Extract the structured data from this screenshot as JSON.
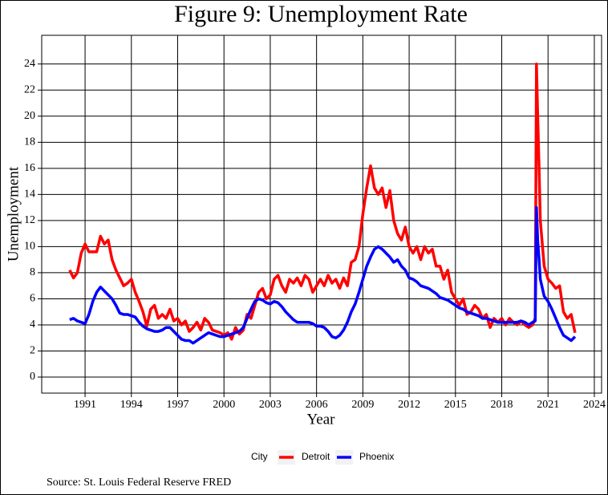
{
  "chart_data": {
    "type": "line",
    "title": "Figure 9: Unemployment Rate",
    "x_label": "Year",
    "y_label": "Unemployment",
    "legend_title": "City",
    "legend_position": "bottom",
    "source": "Source: St. Louis Federal Reserve FRED",
    "grid": true,
    "xlim": [
      1988.19,
      2024.47
    ],
    "ylim": [
      -1.23,
      26.2
    ],
    "xticks": [
      1991,
      1994,
      1997,
      2000,
      2003,
      2006,
      2009,
      2012,
      2015,
      2018,
      2021,
      2024
    ],
    "yticks": [
      0,
      2,
      4,
      6,
      8,
      10,
      12,
      14,
      16,
      18,
      20,
      22,
      24
    ],
    "x": [
      1990,
      1990.25,
      1990.5,
      1990.75,
      1991,
      1991.25,
      1991.5,
      1991.75,
      1992,
      1992.25,
      1992.5,
      1992.75,
      1993,
      1993.25,
      1993.5,
      1993.75,
      1994,
      1994.25,
      1994.5,
      1994.75,
      1995,
      1995.25,
      1995.5,
      1995.75,
      1996,
      1996.25,
      1996.5,
      1996.75,
      1997,
      1997.25,
      1997.5,
      1997.75,
      1998,
      1998.25,
      1998.5,
      1998.75,
      1999,
      1999.25,
      1999.5,
      1999.75,
      2000,
      2000.25,
      2000.5,
      2000.75,
      2001,
      2001.25,
      2001.5,
      2001.75,
      2002,
      2002.25,
      2002.5,
      2002.75,
      2003,
      2003.25,
      2003.5,
      2003.75,
      2004,
      2004.25,
      2004.5,
      2004.75,
      2005,
      2005.25,
      2005.5,
      2005.75,
      2006,
      2006.25,
      2006.5,
      2006.75,
      2007,
      2007.25,
      2007.5,
      2007.75,
      2008,
      2008.25,
      2008.5,
      2008.75,
      2009,
      2009.25,
      2009.5,
      2009.75,
      2010,
      2010.25,
      2010.5,
      2010.75,
      2011,
      2011.25,
      2011.5,
      2011.75,
      2012,
      2012.25,
      2012.5,
      2012.75,
      2013,
      2013.25,
      2013.5,
      2013.75,
      2014,
      2014.25,
      2014.5,
      2014.75,
      2015,
      2015.25,
      2015.5,
      2015.75,
      2016,
      2016.25,
      2016.5,
      2016.75,
      2017,
      2017.25,
      2017.5,
      2017.75,
      2018,
      2018.25,
      2018.5,
      2018.75,
      2019,
      2019.25,
      2019.5,
      2019.75,
      2020,
      2020.17,
      2020.25,
      2020.33,
      2020.42,
      2020.5,
      2020.75,
      2021,
      2021.25,
      2021.5,
      2021.75,
      2022,
      2022.25,
      2022.5,
      2022.75
    ],
    "series": [
      {
        "name": "Detroit",
        "color": "#ff0000",
        "values": [
          8.2,
          7.6,
          8.0,
          9.5,
          10.2,
          9.6,
          9.6,
          9.6,
          10.8,
          10.2,
          10.5,
          9.0,
          8.2,
          7.6,
          7.0,
          7.2,
          7.5,
          6.5,
          5.8,
          5.0,
          3.9,
          5.2,
          5.5,
          4.5,
          4.8,
          4.5,
          5.2,
          4.3,
          4.5,
          4.0,
          4.3,
          3.5,
          3.8,
          4.2,
          3.6,
          4.5,
          4.2,
          3.6,
          3.5,
          3.4,
          3.2,
          3.4,
          2.9,
          3.8,
          3.3,
          3.6,
          4.8,
          4.5,
          5.5,
          6.5,
          6.8,
          6.0,
          6.3,
          7.5,
          7.8,
          7.0,
          6.5,
          7.5,
          7.2,
          7.6,
          7.0,
          7.8,
          7.5,
          6.5,
          7.0,
          7.5,
          7.0,
          7.8,
          7.2,
          7.5,
          6.8,
          7.6,
          7.0,
          8.8,
          9.0,
          10.0,
          12.5,
          14.5,
          16.2,
          14.5,
          14.0,
          14.5,
          13.0,
          14.3,
          12.0,
          11.0,
          10.5,
          11.5,
          10.0,
          9.5,
          10.0,
          9.0,
          10.0,
          9.5,
          9.8,
          8.5,
          8.5,
          7.5,
          8.2,
          6.5,
          6.0,
          5.5,
          6.0,
          4.8,
          5.0,
          5.5,
          5.2,
          4.5,
          4.8,
          3.8,
          4.5,
          4.2,
          4.5,
          4.0,
          4.5,
          4.2,
          4.0,
          4.3,
          4.0,
          3.8,
          4.0,
          4.5,
          24.0,
          20.0,
          16.0,
          12.0,
          8.5,
          7.5,
          7.2,
          6.8,
          7.0,
          5.0,
          4.5,
          4.8,
          3.4
        ]
      },
      {
        "name": "Phoenix",
        "color": "#0000ff",
        "values": [
          4.4,
          4.5,
          4.3,
          4.2,
          4.1,
          4.8,
          5.8,
          6.5,
          6.9,
          6.6,
          6.3,
          6.0,
          5.5,
          4.9,
          4.8,
          4.8,
          4.7,
          4.6,
          4.2,
          3.9,
          3.7,
          3.6,
          3.5,
          3.5,
          3.6,
          3.8,
          3.8,
          3.5,
          3.2,
          2.9,
          2.8,
          2.8,
          2.6,
          2.8,
          3.0,
          3.2,
          3.4,
          3.3,
          3.2,
          3.1,
          3.1,
          3.2,
          3.3,
          3.4,
          3.5,
          3.8,
          4.5,
          5.2,
          5.8,
          6.0,
          5.9,
          5.7,
          5.6,
          5.8,
          5.7,
          5.4,
          5.0,
          4.7,
          4.4,
          4.2,
          4.2,
          4.2,
          4.2,
          4.1,
          3.9,
          3.9,
          3.8,
          3.5,
          3.1,
          3.0,
          3.2,
          3.6,
          4.2,
          5.0,
          5.6,
          6.5,
          7.5,
          8.5,
          9.2,
          9.8,
          10.0,
          9.8,
          9.5,
          9.2,
          8.8,
          9.0,
          8.5,
          8.2,
          7.6,
          7.5,
          7.3,
          7.0,
          6.9,
          6.8,
          6.6,
          6.4,
          6.1,
          6.0,
          5.9,
          5.7,
          5.5,
          5.3,
          5.2,
          5.0,
          4.9,
          4.8,
          4.7,
          4.5,
          4.5,
          4.4,
          4.3,
          4.2,
          4.2,
          4.2,
          4.2,
          4.2,
          4.2,
          4.3,
          4.2,
          4.0,
          4.2,
          4.3,
          13.0,
          10.5,
          9.0,
          7.5,
          6.2,
          5.8,
          5.2,
          4.5,
          3.8,
          3.2,
          3.0,
          2.8,
          3.1
        ]
      }
    ]
  }
}
